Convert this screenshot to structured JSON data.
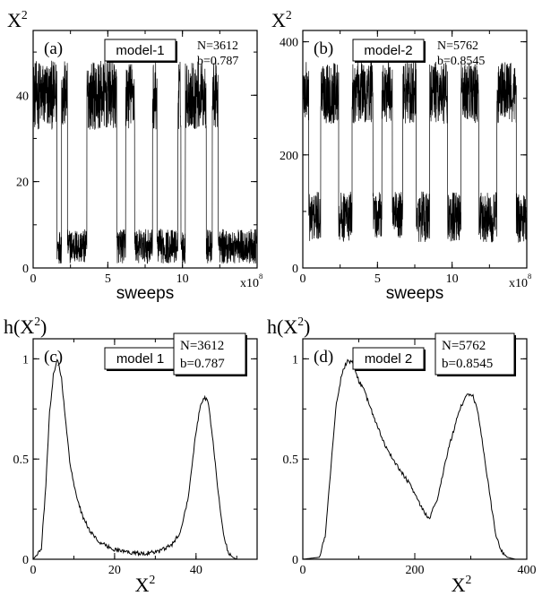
{
  "panels": [
    {
      "panel_label": "(a)",
      "model_label": "model-1",
      "info_n": "N=3612",
      "info_b": "b=0.787",
      "ylabel_main": "X",
      "ylabel_sup": "2",
      "xlabel_main": "sweeps",
      "x_multiplier_main": "x10",
      "x_multiplier_sup": "8"
    },
    {
      "panel_label": "(b)",
      "model_label": "model-2",
      "info_n": "N=5762",
      "info_b": "b=0.8545",
      "ylabel_main": "X",
      "ylabel_sup": "2",
      "xlabel_main": "sweeps",
      "x_multiplier_main": "x10",
      "x_multiplier_sup": "8"
    },
    {
      "panel_label": "(c)",
      "model_label": "model 1",
      "info_n": "N=3612",
      "info_b": "b=0.787",
      "ylabel_main": "h(X",
      "ylabel_sup": "2",
      "ylabel_close": ")",
      "xlabel_main": "X",
      "xlabel_sup": "2"
    },
    {
      "panel_label": "(d)",
      "model_label": "model 2",
      "info_n": "N=5762",
      "info_b": "b=0.8545",
      "ylabel_main": "h(X",
      "ylabel_sup": "2",
      "ylabel_close": ")",
      "xlabel_main": "X",
      "xlabel_sup": "2"
    }
  ],
  "chart_data": [
    {
      "type": "line",
      "panel": "(a)",
      "xlabel": "sweeps",
      "ylabel": "X^2",
      "xlim": [
        0,
        15
      ],
      "ylim": [
        0,
        55
      ],
      "x_ticks": [
        0,
        5,
        10
      ],
      "y_ticks": [
        0,
        20,
        40
      ],
      "x_scale_note": "x10^8",
      "state_levels": [
        5,
        40
      ],
      "segments": [
        {
          "x0": 0.0,
          "x1": 1.6,
          "level": 40
        },
        {
          "x0": 1.6,
          "x1": 1.9,
          "level": 5
        },
        {
          "x0": 1.9,
          "x1": 2.3,
          "level": 40
        },
        {
          "x0": 2.3,
          "x1": 3.6,
          "level": 5
        },
        {
          "x0": 3.6,
          "x1": 5.6,
          "level": 40
        },
        {
          "x0": 5.6,
          "x1": 6.2,
          "level": 5
        },
        {
          "x0": 6.2,
          "x1": 6.8,
          "level": 40
        },
        {
          "x0": 6.8,
          "x1": 8.0,
          "level": 5
        },
        {
          "x0": 8.0,
          "x1": 8.3,
          "level": 40
        },
        {
          "x0": 8.3,
          "x1": 9.7,
          "level": 5
        },
        {
          "x0": 9.7,
          "x1": 9.9,
          "level": 40
        },
        {
          "x0": 9.9,
          "x1": 10.2,
          "level": 5
        },
        {
          "x0": 10.2,
          "x1": 11.6,
          "level": 40
        },
        {
          "x0": 11.6,
          "x1": 12.0,
          "level": 5
        },
        {
          "x0": 12.0,
          "x1": 12.4,
          "level": 40
        },
        {
          "x0": 12.4,
          "x1": 15.0,
          "level": 5
        }
      ]
    },
    {
      "type": "line",
      "panel": "(b)",
      "xlabel": "sweeps",
      "ylabel": "X^2",
      "xlim": [
        0,
        15
      ],
      "ylim": [
        0,
        420
      ],
      "x_ticks": [
        0,
        5,
        10
      ],
      "y_ticks": [
        0,
        200,
        400
      ],
      "x_scale_note": "x10^8",
      "state_levels": [
        90,
        310
      ],
      "segments": [
        {
          "x0": 0.0,
          "x1": 0.4,
          "level": 310
        },
        {
          "x0": 0.4,
          "x1": 1.2,
          "level": 90
        },
        {
          "x0": 1.2,
          "x1": 2.4,
          "level": 310
        },
        {
          "x0": 2.4,
          "x1": 3.3,
          "level": 90
        },
        {
          "x0": 3.3,
          "x1": 4.7,
          "level": 310
        },
        {
          "x0": 4.7,
          "x1": 5.3,
          "level": 90
        },
        {
          "x0": 5.3,
          "x1": 6.0,
          "level": 310
        },
        {
          "x0": 6.0,
          "x1": 6.7,
          "level": 90
        },
        {
          "x0": 6.7,
          "x1": 7.6,
          "level": 310
        },
        {
          "x0": 7.6,
          "x1": 8.5,
          "level": 90
        },
        {
          "x0": 8.5,
          "x1": 9.7,
          "level": 310
        },
        {
          "x0": 9.7,
          "x1": 10.6,
          "level": 90
        },
        {
          "x0": 10.6,
          "x1": 11.8,
          "level": 310
        },
        {
          "x0": 11.8,
          "x1": 13.0,
          "level": 90
        },
        {
          "x0": 13.0,
          "x1": 14.3,
          "level": 310
        },
        {
          "x0": 14.3,
          "x1": 15.0,
          "level": 90
        }
      ]
    },
    {
      "type": "line",
      "panel": "(c)",
      "xlabel": "X^2",
      "ylabel": "h(X^2)",
      "xlim": [
        0,
        55
      ],
      "ylim": [
        0,
        1.1
      ],
      "x_ticks": [
        0,
        20,
        40
      ],
      "y_ticks": [
        0,
        0.5,
        1
      ],
      "x": [
        0,
        2,
        3,
        4,
        5,
        6,
        7,
        8,
        9,
        10,
        12,
        14,
        16,
        18,
        20,
        22,
        25,
        28,
        31,
        34,
        36,
        38,
        39,
        40,
        41,
        42,
        43,
        44,
        45,
        46,
        47,
        48,
        49,
        50,
        52,
        55
      ],
      "y": [
        0,
        0.05,
        0.33,
        0.72,
        0.93,
        1.0,
        0.9,
        0.68,
        0.49,
        0.37,
        0.22,
        0.14,
        0.09,
        0.065,
        0.05,
        0.04,
        0.03,
        0.03,
        0.04,
        0.07,
        0.13,
        0.3,
        0.47,
        0.64,
        0.76,
        0.81,
        0.78,
        0.62,
        0.42,
        0.23,
        0.1,
        0.03,
        0.01,
        0,
        0,
        0
      ]
    },
    {
      "type": "line",
      "panel": "(d)",
      "xlabel": "X^2",
      "ylabel": "h(X^2)",
      "xlim": [
        0,
        400
      ],
      "ylim": [
        0,
        1.1
      ],
      "x_ticks": [
        0,
        200,
        400
      ],
      "y_ticks": [
        0,
        0.5,
        1
      ],
      "x": [
        0,
        30,
        40,
        50,
        60,
        70,
        80,
        90,
        100,
        110,
        120,
        130,
        150,
        170,
        190,
        210,
        225,
        240,
        260,
        280,
        295,
        305,
        315,
        325,
        335,
        345,
        355,
        365,
        380,
        400
      ],
      "y": [
        0,
        0.01,
        0.12,
        0.45,
        0.78,
        0.93,
        0.99,
        0.98,
        0.89,
        0.84,
        0.76,
        0.69,
        0.55,
        0.46,
        0.38,
        0.27,
        0.2,
        0.3,
        0.55,
        0.75,
        0.83,
        0.81,
        0.7,
        0.5,
        0.3,
        0.12,
        0.04,
        0.01,
        0,
        0
      ]
    }
  ]
}
